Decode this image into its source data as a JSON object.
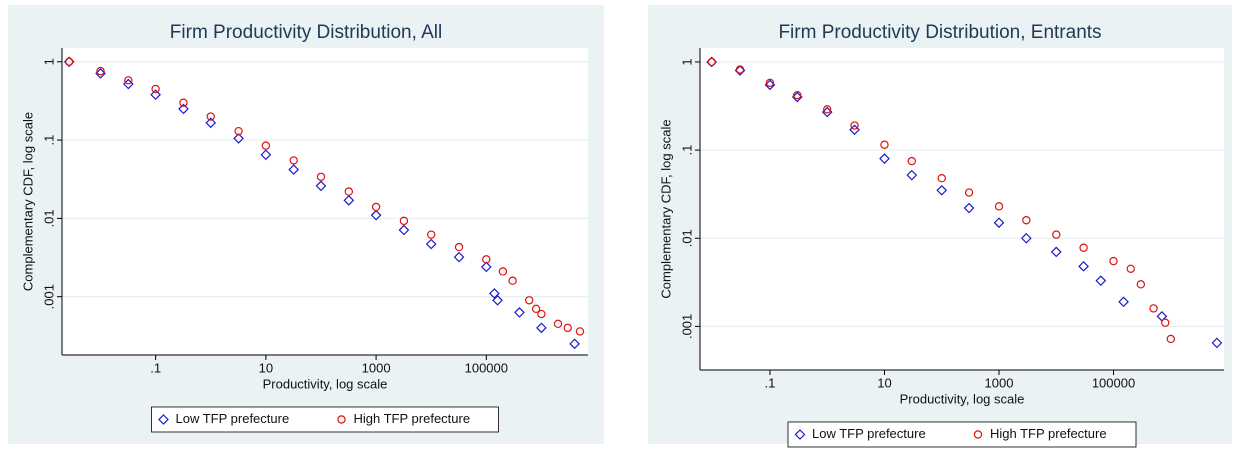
{
  "chart_data": [
    {
      "type": "scatter",
      "title": "Firm Productivity Distribution, All",
      "x_label": "Productivity, log scale",
      "y_label": "Complementary CDF, log scale",
      "xscale": "log",
      "yscale": "log",
      "grid": true,
      "legend": "bottom",
      "xlim": [
        0.002,
        7000000
      ],
      "ylim": [
        0.00018,
        1.5
      ],
      "xticks": [
        {
          "value": 0.1,
          "label": ".1"
        },
        10,
        1000,
        100000
      ],
      "yticks": [
        {
          "value": 0.001,
          "label": ".001"
        },
        {
          "value": 0.01,
          "label": ".01"
        },
        {
          "value": 0.1,
          "label": ".1"
        },
        1
      ],
      "series": [
        {
          "name": "Low TFP prefecture",
          "color": "#1a1acc",
          "marker": "diamond",
          "x": [
            0.0027,
            0.01,
            0.032,
            0.1,
            0.32,
            1,
            3.2,
            10,
            32,
            100,
            320,
            1000,
            3200,
            10000,
            32000,
            100000,
            140000,
            160000,
            400000,
            1000000,
            4000000
          ],
          "values": [
            1,
            0.71,
            0.52,
            0.38,
            0.25,
            0.166,
            0.105,
            0.065,
            0.042,
            0.026,
            0.017,
            0.011,
            0.0071,
            0.0047,
            0.0032,
            0.0024,
            0.0011,
            0.0009,
            0.00063,
            0.0004,
            0.00025
          ]
        },
        {
          "name": "High TFP prefecture",
          "color": "#e01010",
          "marker": "circle",
          "x": [
            0.0027,
            0.01,
            0.032,
            0.1,
            0.32,
            1,
            3.2,
            10,
            32,
            100,
            320,
            1000,
            3200,
            10000,
            32000,
            100000,
            200000,
            300000,
            600000,
            800000,
            1000000,
            2000000,
            3000000,
            5000000
          ],
          "values": [
            1,
            0.76,
            0.58,
            0.45,
            0.3,
            0.2,
            0.13,
            0.085,
            0.055,
            0.034,
            0.022,
            0.014,
            0.0093,
            0.0062,
            0.0043,
            0.003,
            0.0021,
            0.0016,
            0.0009,
            0.0007,
            0.0006,
            0.00045,
            0.0004,
            0.00036
          ]
        }
      ]
    },
    {
      "type": "scatter",
      "title": "Firm Productivity Distribution, Entrants",
      "x_label": "Productivity, log scale",
      "y_label": "Complementary CDF, log scale",
      "xscale": "log",
      "yscale": "log",
      "grid": true,
      "legend": "bottom",
      "xlim": [
        0.006,
        8500000
      ],
      "ylim": [
        0.00032,
        1.44
      ],
      "xticks": [
        {
          "value": 0.1,
          "label": ".1"
        },
        10,
        1000,
        100000
      ],
      "yticks": [
        {
          "value": 0.001,
          "label": ".001"
        },
        {
          "value": 0.01,
          "label": ".01"
        },
        {
          "value": 0.1,
          "label": ".1"
        },
        1
      ],
      "series": [
        {
          "name": "Low TFP prefecture",
          "color": "#1a1acc",
          "marker": "diamond",
          "x": [
            0.0096,
            0.03,
            0.1,
            0.3,
            1,
            3,
            10,
            30,
            100,
            300,
            1000,
            3000,
            10000,
            30000,
            60000,
            150000,
            700000,
            6400000
          ],
          "values": [
            1,
            0.8,
            0.55,
            0.4,
            0.27,
            0.17,
            0.08,
            0.052,
            0.035,
            0.022,
            0.015,
            0.01,
            0.007,
            0.0048,
            0.0033,
            0.0019,
            0.0013,
            0.00065
          ]
        },
        {
          "name": "High TFP prefecture",
          "color": "#e01010",
          "marker": "circle",
          "x": [
            0.0096,
            0.03,
            0.1,
            0.3,
            1,
            3,
            10,
            30,
            100,
            300,
            1000,
            3000,
            10000,
            30000,
            100000,
            200000,
            300000,
            500000,
            800000,
            1000000
          ],
          "values": [
            1,
            0.82,
            0.58,
            0.42,
            0.29,
            0.19,
            0.115,
            0.075,
            0.048,
            0.033,
            0.023,
            0.016,
            0.011,
            0.0078,
            0.0055,
            0.0045,
            0.003,
            0.0016,
            0.0011,
            0.00072
          ]
        }
      ]
    }
  ]
}
